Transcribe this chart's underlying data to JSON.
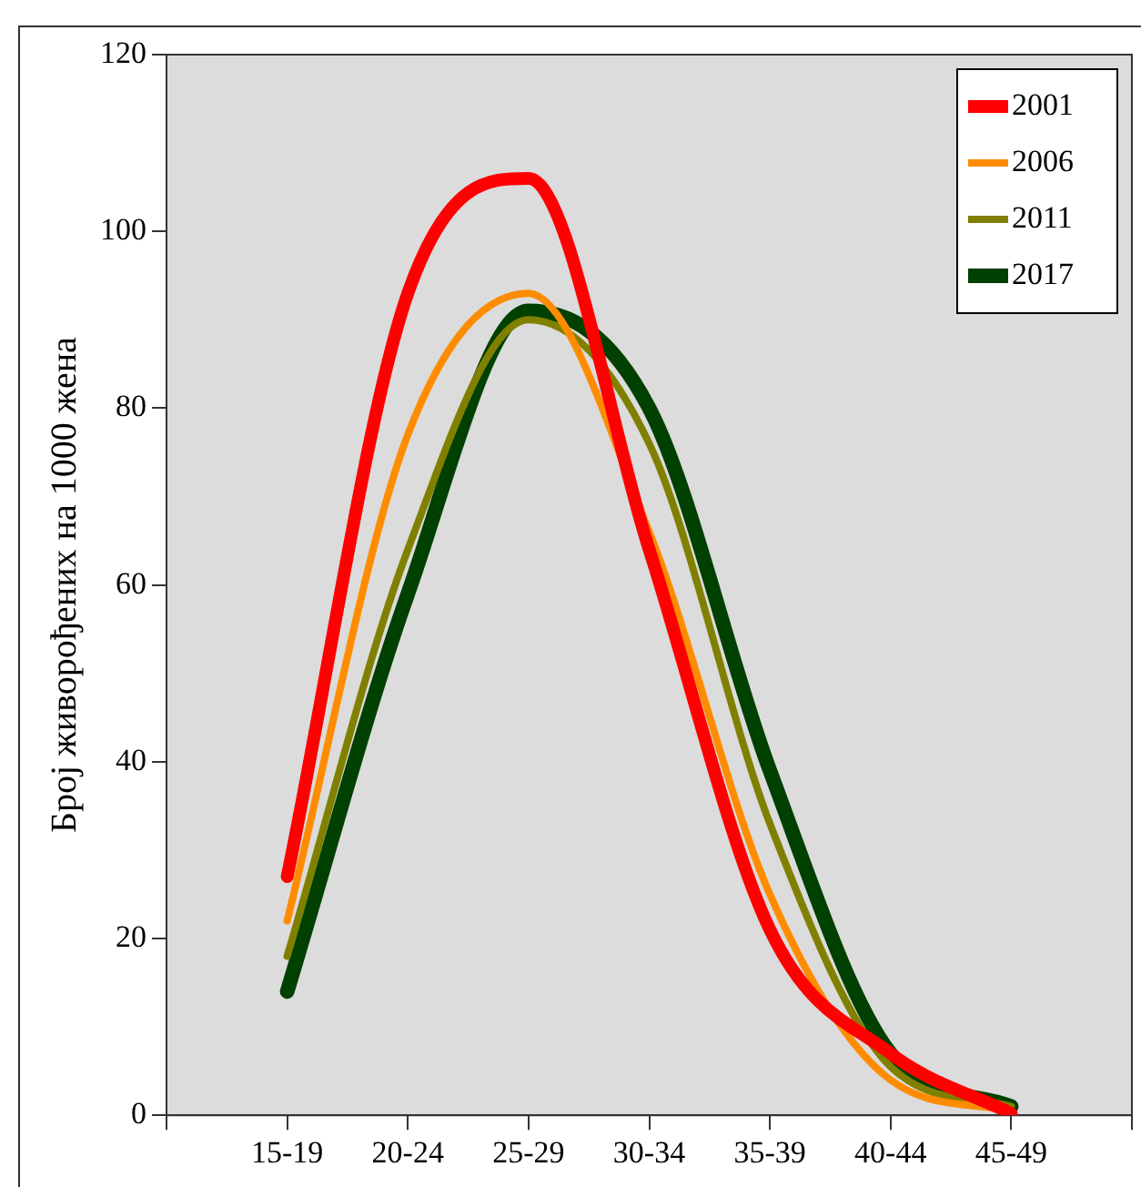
{
  "chart_data": {
    "type": "line",
    "ylabel": "Број живорођених на 1000 жена",
    "categories": [
      "15-19",
      "20-24",
      "25-29",
      "30-34",
      "35-39",
      "40-44",
      "45-49"
    ],
    "ylim": [
      0,
      120
    ],
    "yticks": [
      0,
      20,
      40,
      60,
      80,
      100,
      120
    ],
    "grid": false,
    "legend": "top right",
    "marker": "none",
    "line_style": "solid",
    "series": [
      {
        "name": "2001",
        "color": "#ff0000",
        "values": [
          27,
          93,
          106,
          64,
          21,
          7,
          0.2
        ]
      },
      {
        "name": "2006",
        "color": "#ff8c00",
        "values": [
          22,
          77,
          93,
          66,
          25,
          4,
          0.5
        ]
      },
      {
        "name": "2011",
        "color": "#808000",
        "values": [
          18,
          64,
          90,
          76,
          33,
          5.5,
          1
        ]
      },
      {
        "name": "2017",
        "color": "#004000",
        "values": [
          14,
          59,
          91,
          80,
          39,
          7,
          1
        ]
      }
    ]
  }
}
